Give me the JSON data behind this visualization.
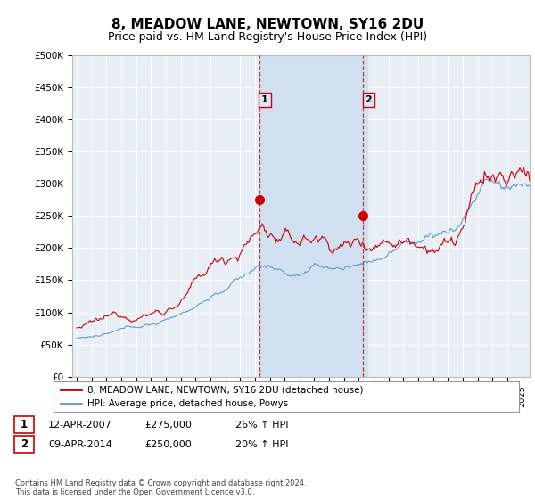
{
  "title": "8, MEADOW LANE, NEWTOWN, SY16 2DU",
  "subtitle": "Price paid vs. HM Land Registry's House Price Index (HPI)",
  "title_fontsize": 11,
  "subtitle_fontsize": 9,
  "ylabel_ticks": [
    "£0",
    "£50K",
    "£100K",
    "£150K",
    "£200K",
    "£250K",
    "£300K",
    "£350K",
    "£400K",
    "£450K",
    "£500K"
  ],
  "ytick_values": [
    0,
    50000,
    100000,
    150000,
    200000,
    250000,
    300000,
    350000,
    400000,
    450000,
    500000
  ],
  "ylim": [
    0,
    500000
  ],
  "xlim_start": 1994.7,
  "xlim_end": 2025.5,
  "plot_bg_color": "#e8eef5",
  "grid_color": "#ffffff",
  "line_color_red": "#cc0000",
  "line_color_blue": "#6699cc",
  "shaded_color": "#d0e0f0",
  "annotation_box_fill": "#dce8f5",
  "annotation_border_color": "#cc0000",
  "point1_x": 2007.28,
  "point1_y": 275000,
  "point2_x": 2014.28,
  "point2_y": 250000,
  "shaded_x1": 2007.28,
  "shaded_x2": 2014.55,
  "legend_label_red": "8, MEADOW LANE, NEWTOWN, SY16 2DU (detached house)",
  "legend_label_blue": "HPI: Average price, detached house, Powys",
  "table_row1": [
    "1",
    "12-APR-2007",
    "£275,000",
    "26% ↑ HPI"
  ],
  "table_row2": [
    "2",
    "09-APR-2014",
    "£250,000",
    "20% ↑ HPI"
  ],
  "footnote": "Contains HM Land Registry data © Crown copyright and database right 2024.\nThis data is licensed under the Open Government Licence v3.0."
}
